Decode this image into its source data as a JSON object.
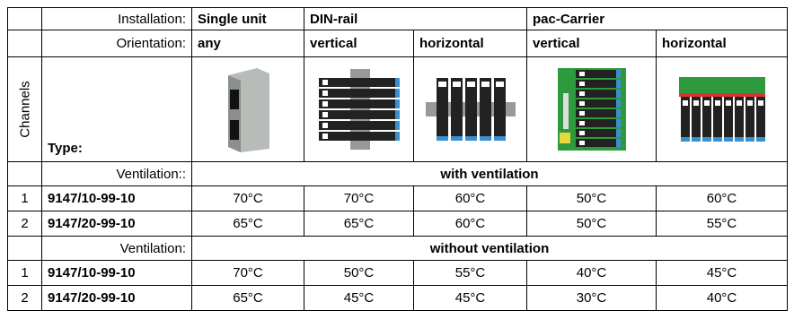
{
  "header": {
    "installation_label": "Installation:",
    "installations": [
      "Single unit",
      "DIN-rail",
      "pac-Carrier"
    ],
    "orientation_label": "Orientation:",
    "orientations": [
      "any",
      "vertical",
      "horizontal",
      "vertical",
      "horizontal"
    ],
    "channels_label": "Channels",
    "type_label": "Type:"
  },
  "sections": [
    {
      "label": "Ventilation::",
      "title": "with ventilation",
      "rows": [
        {
          "channel": "1",
          "type": "9147/10-99-10",
          "temps": [
            "70°C",
            "70°C",
            "60°C",
            "50°C",
            "60°C"
          ]
        },
        {
          "channel": "2",
          "type": "9147/20-99-10",
          "temps": [
            "65°C",
            "65°C",
            "60°C",
            "50°C",
            "55°C"
          ]
        }
      ]
    },
    {
      "label": "Ventilation:",
      "title": "without ventilation",
      "rows": [
        {
          "channel": "1",
          "type": "9147/10-99-10",
          "temps": [
            "70°C",
            "50°C",
            "55°C",
            "40°C",
            "45°C"
          ]
        },
        {
          "channel": "2",
          "type": "9147/20-99-10",
          "temps": [
            "65°C",
            "45°C",
            "45°C",
            "30°C",
            "40°C"
          ]
        }
      ]
    }
  ]
}
